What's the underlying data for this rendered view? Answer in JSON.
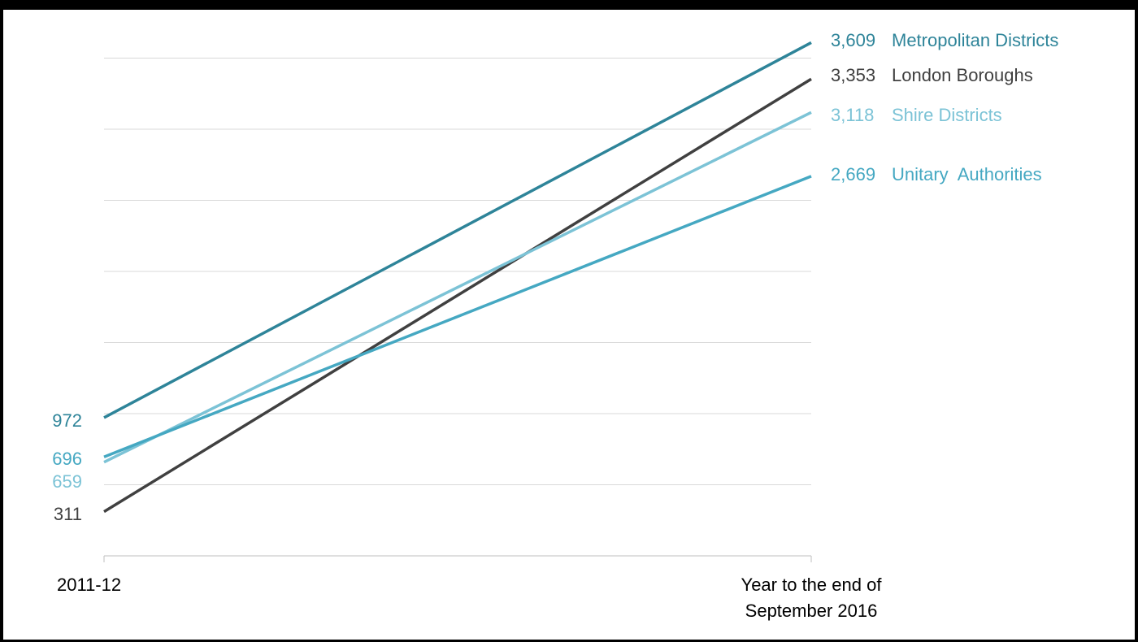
{
  "chart_data": {
    "type": "line",
    "title": "",
    "xlabel": "",
    "ylabel": "",
    "categories": [
      "2011-12",
      "Year to the end of September 2016"
    ],
    "category_lines": [
      [
        "2011-12"
      ],
      [
        "Year to the end of",
        "September 2016"
      ]
    ],
    "ylim": [
      0,
      4000
    ],
    "grid": true,
    "series": [
      {
        "name": "Metropolitan Districts",
        "values": [
          972,
          3609
        ],
        "start_label": "972",
        "end_label": "3,609",
        "color": "#2e8499"
      },
      {
        "name": "London Boroughs",
        "values": [
          311,
          3353
        ],
        "start_label": "311",
        "end_label": "3,353",
        "color": "#404040"
      },
      {
        "name": "Shire Districts",
        "values": [
          659,
          3118
        ],
        "start_label": "659",
        "end_label": "3,118",
        "color": "#7cc3d6"
      },
      {
        "name": "Unitary  Authorities",
        "values": [
          696,
          2669
        ],
        "start_label": "696",
        "end_label": "2,669",
        "color": "#45a8c2"
      }
    ]
  }
}
